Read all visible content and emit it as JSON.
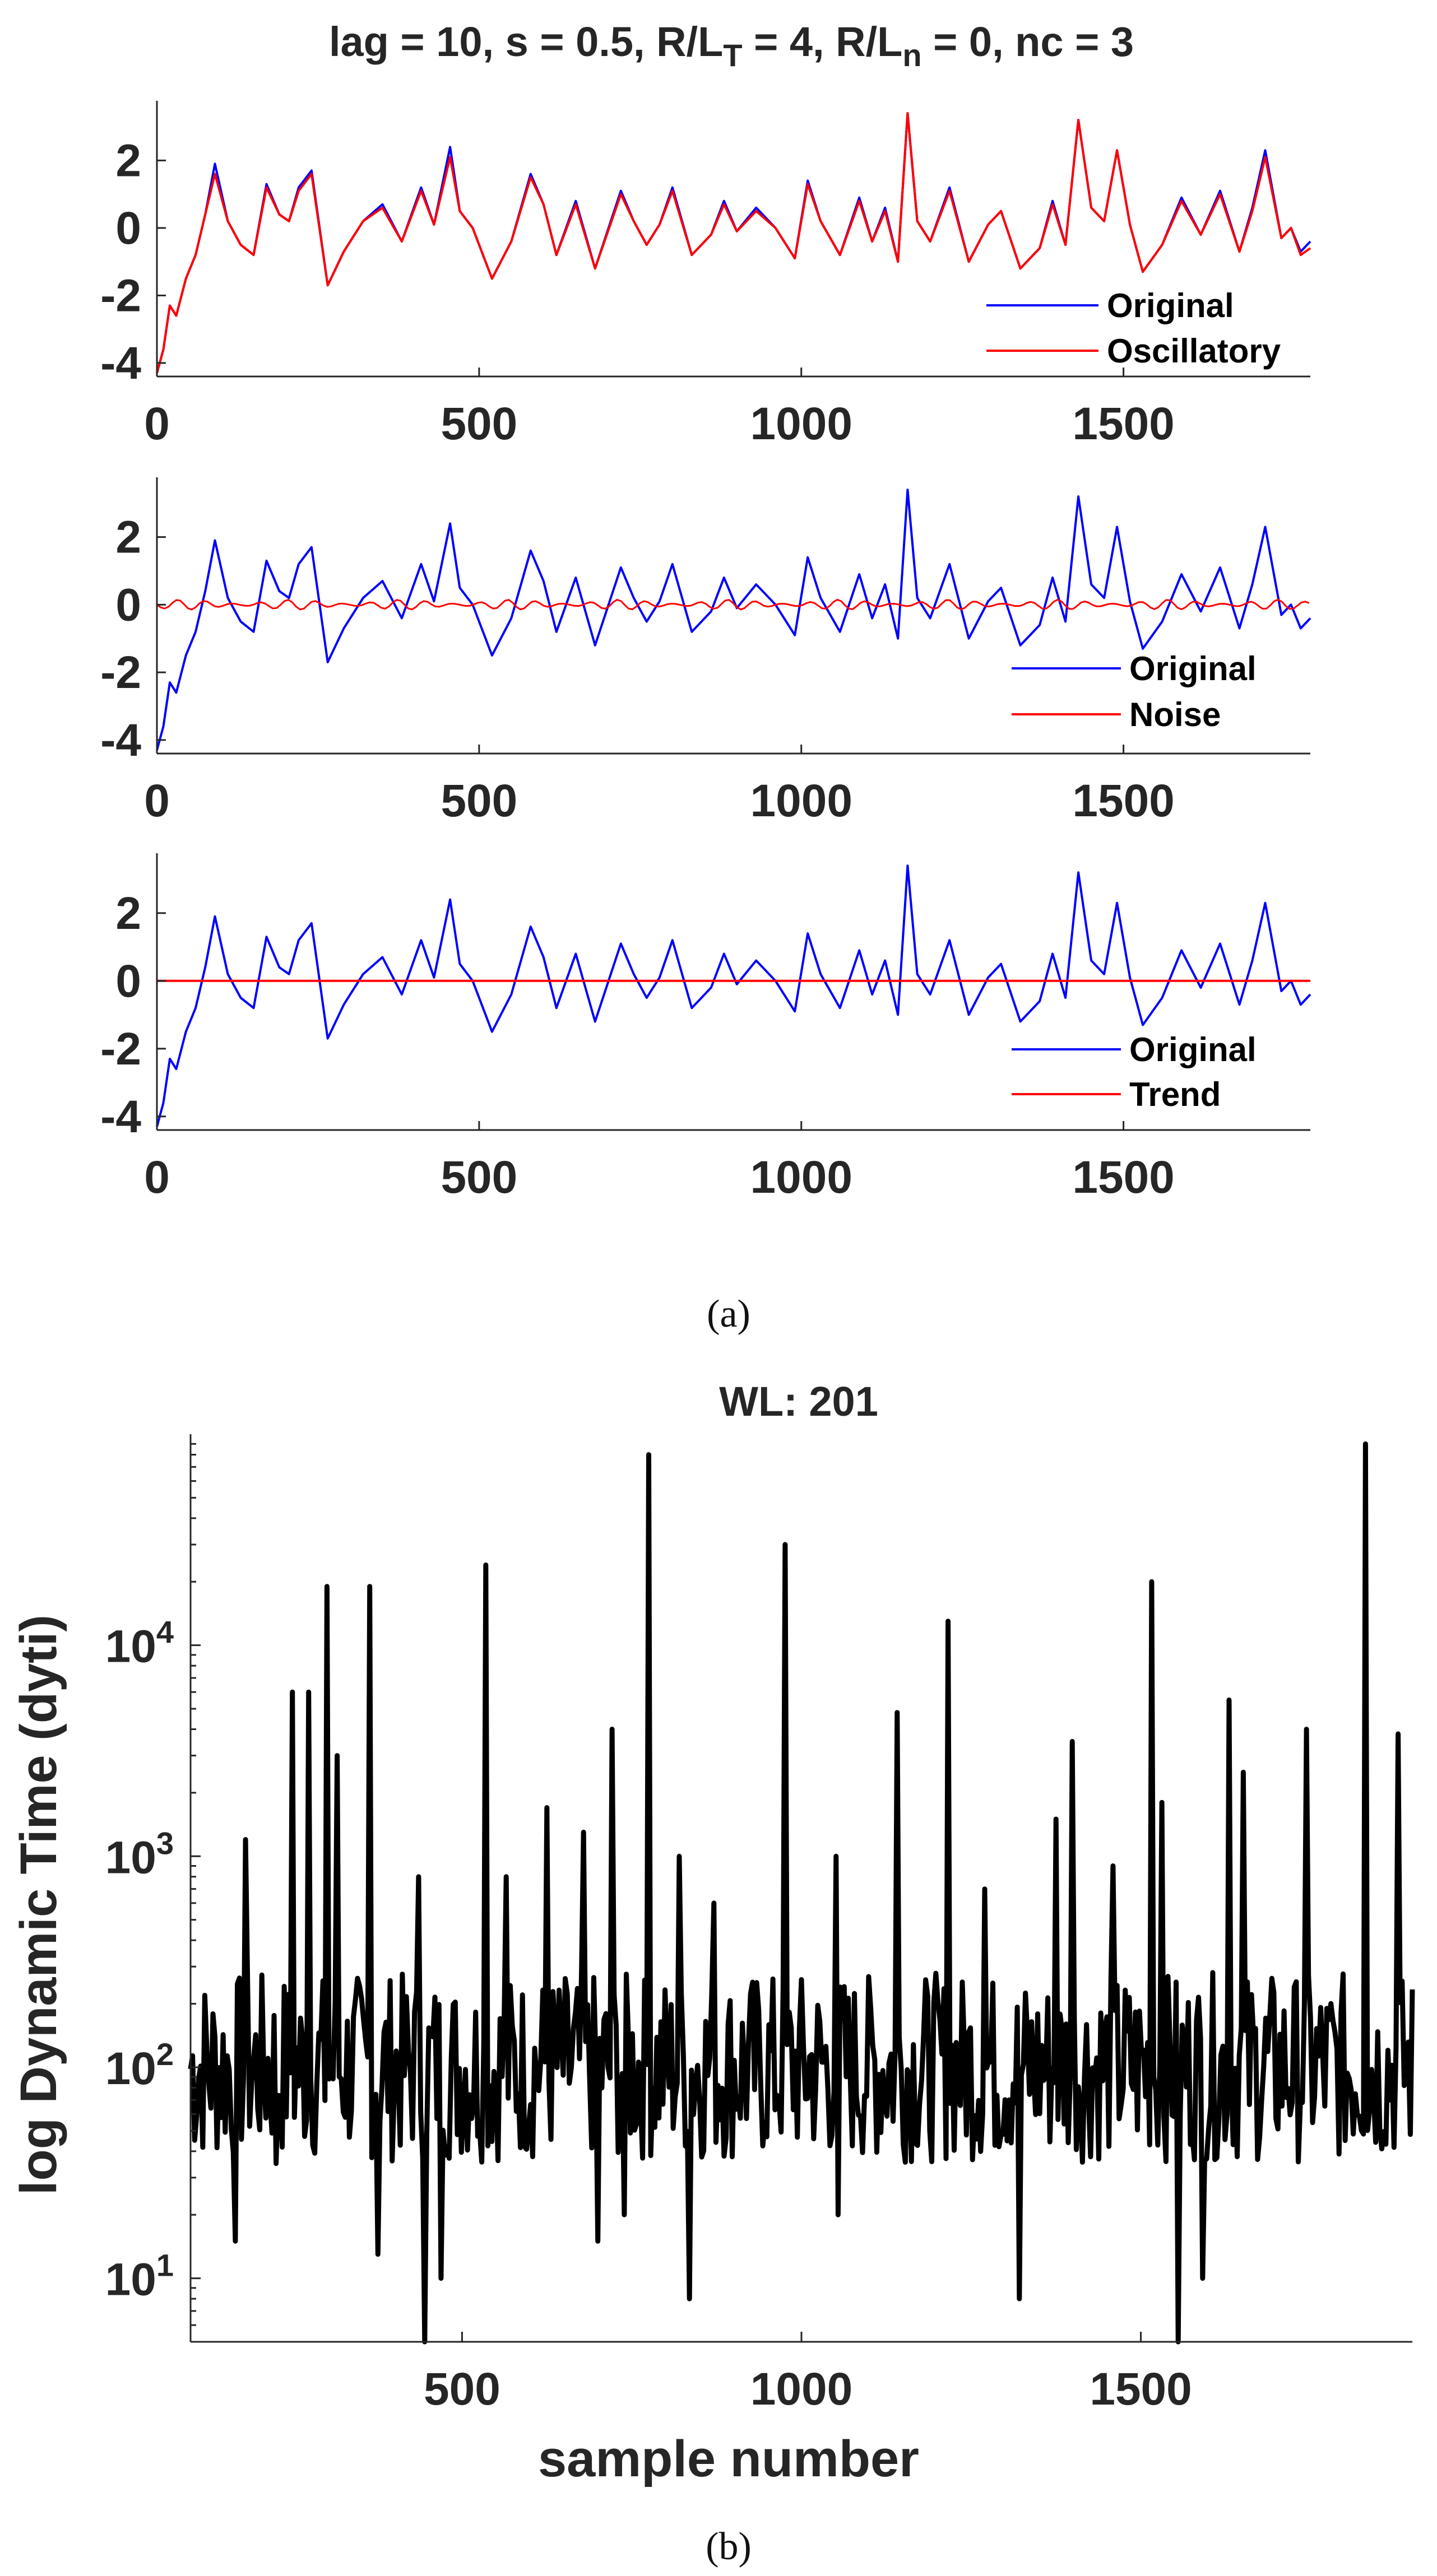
{
  "figure_title": "lag = 10, s = 0.5, R/LT = 4, R/Ln = 0, nc = 3",
  "figure_title_parts": {
    "p1": "lag = 10, s = 0.5, R/L",
    "s1": "T",
    "p2": " = 4, R/L",
    "s2": "n",
    "p3": " = 0, nc = 3"
  },
  "caption_a": "(a)",
  "caption_b": "(b)",
  "colors": {
    "original": "#0000ff",
    "component": "#ff0000",
    "dyti": "#000000",
    "axis": "#262626"
  },
  "chart_data": [
    {
      "type": "line",
      "panel": "a-top",
      "title": "",
      "xlabel": "",
      "ylabel": "",
      "xlim": [
        0,
        1790
      ],
      "ylim": [
        -4.4,
        3.6
      ],
      "xticks": [
        0,
        500,
        1000,
        1500
      ],
      "yticks": [
        2,
        0,
        -2,
        -4
      ],
      "xtick_labels": [
        "0",
        "500",
        "1000",
        "1500"
      ],
      "ytick_labels": [
        "2",
        "0",
        "-2",
        "-4"
      ],
      "legend": {
        "placement": "bottom-right",
        "entries": [
          "Original",
          "Oscillatory"
        ]
      },
      "x": [
        0,
        10,
        20,
        30,
        45,
        60,
        75,
        90,
        110,
        130,
        150,
        170,
        190,
        205,
        220,
        240,
        265,
        290,
        320,
        350,
        380,
        410,
        430,
        455,
        470,
        490,
        520,
        550,
        580,
        600,
        620,
        650,
        680,
        720,
        740,
        760,
        780,
        800,
        830,
        860,
        880,
        900,
        930,
        960,
        990,
        1010,
        1030,
        1060,
        1090,
        1110,
        1130,
        1150,
        1165,
        1180,
        1200,
        1230,
        1260,
        1290,
        1310,
        1340,
        1370,
        1390,
        1410,
        1430,
        1450,
        1470,
        1490,
        1510,
        1530,
        1560,
        1590,
        1620,
        1650,
        1680,
        1700,
        1720,
        1745,
        1760,
        1775,
        1790
      ],
      "series": [
        {
          "name": "Original",
          "values": [
            -4.3,
            -3.6,
            -2.3,
            -2.6,
            -1.5,
            -0.8,
            0.4,
            1.9,
            0.2,
            -0.5,
            -0.8,
            1.3,
            0.4,
            0.2,
            1.2,
            1.7,
            -1.7,
            -0.7,
            0.2,
            0.7,
            -0.4,
            1.2,
            0.1,
            2.4,
            0.5,
            0.0,
            -1.5,
            -0.4,
            1.6,
            0.7,
            -0.8,
            0.8,
            -1.2,
            1.1,
            0.2,
            -0.5,
            0.1,
            1.2,
            -0.8,
            -0.2,
            0.8,
            -0.1,
            0.6,
            0.0,
            -0.9,
            1.4,
            0.2,
            -0.8,
            0.9,
            -0.4,
            0.6,
            -1.0,
            3.4,
            0.2,
            -0.4,
            1.2,
            -1.0,
            0.1,
            0.5,
            -1.2,
            -0.6,
            0.8,
            -0.5,
            3.2,
            0.6,
            0.2,
            2.3,
            0.1,
            -1.3,
            -0.5,
            0.9,
            -0.2,
            1.1,
            -0.7,
            0.6,
            2.3,
            -0.3,
            0.0,
            -0.7,
            -0.4
          ]
        },
        {
          "name": "Oscillatory",
          "values": [
            -4.3,
            -3.6,
            -2.3,
            -2.6,
            -1.5,
            -0.8,
            0.4,
            1.6,
            0.2,
            -0.5,
            -0.8,
            1.2,
            0.4,
            0.2,
            1.1,
            1.6,
            -1.7,
            -0.7,
            0.2,
            0.6,
            -0.4,
            1.1,
            0.1,
            2.1,
            0.5,
            0.0,
            -1.5,
            -0.4,
            1.5,
            0.7,
            -0.8,
            0.7,
            -1.2,
            1.0,
            0.2,
            -0.5,
            0.1,
            1.1,
            -0.8,
            -0.2,
            0.7,
            -0.1,
            0.5,
            0.0,
            -0.9,
            1.3,
            0.2,
            -0.8,
            0.8,
            -0.4,
            0.5,
            -1.0,
            3.4,
            0.2,
            -0.4,
            1.1,
            -1.0,
            0.1,
            0.5,
            -1.2,
            -0.6,
            0.7,
            -0.5,
            3.2,
            0.6,
            0.2,
            2.3,
            0.1,
            -1.3,
            -0.5,
            0.8,
            -0.2,
            1.0,
            -0.7,
            0.5,
            2.1,
            -0.3,
            0.0,
            -0.8,
            -0.6
          ]
        }
      ]
    },
    {
      "type": "line",
      "panel": "a-middle",
      "title": "",
      "xlabel": "",
      "ylabel": "",
      "xlim": [
        0,
        1790
      ],
      "ylim": [
        -4.4,
        3.6
      ],
      "xticks": [
        0,
        500,
        1000,
        1500
      ],
      "yticks": [
        2,
        0,
        -2,
        -4
      ],
      "xtick_labels": [
        "0",
        "500",
        "1000",
        "1500"
      ],
      "ytick_labels": [
        "2",
        "0",
        "-2",
        "-4"
      ],
      "legend": {
        "placement": "bottom-right",
        "entries": [
          "Original",
          "Noise"
        ]
      },
      "noise_amplitude": 0.15,
      "series": [
        {
          "name": "Original",
          "ref": "a-top.Original"
        },
        {
          "name": "Noise",
          "values": "oscillating near 0 (±0.15)"
        }
      ]
    },
    {
      "type": "line",
      "panel": "a-bottom",
      "title": "",
      "xlabel": "",
      "ylabel": "",
      "xlim": [
        0,
        1790
      ],
      "ylim": [
        -4.4,
        3.6
      ],
      "xticks": [
        0,
        500,
        1000,
        1500
      ],
      "yticks": [
        2,
        0,
        -2,
        -4
      ],
      "xtick_labels": [
        "0",
        "500",
        "1000",
        "1500"
      ],
      "ytick_labels": [
        "2",
        "0",
        "-2",
        "-4"
      ],
      "legend": {
        "placement": "bottom-right",
        "entries": [
          "Original",
          "Trend"
        ]
      },
      "series": [
        {
          "name": "Original",
          "ref": "a-top.Original"
        },
        {
          "name": "Trend",
          "x": [
            0,
            1790
          ],
          "values": [
            0.0,
            0.0
          ]
        }
      ]
    },
    {
      "type": "line",
      "panel": "b",
      "title": "WL: 201",
      "xlabel": "sample number",
      "ylabel": "log Dynamic Time (dyti)",
      "yscale": "log",
      "xlim": [
        100,
        1900
      ],
      "ylim": [
        5,
        100000
      ],
      "xticks": [
        500,
        1000,
        1500
      ],
      "xtick_labels": [
        "500",
        "1000",
        "1500"
      ],
      "yticks": [
        10,
        100,
        1000,
        10000
      ],
      "ytick_labels": [
        {
          "base": "10",
          "exp": "1"
        },
        {
          "base": "10",
          "exp": "2"
        },
        {
          "base": "10",
          "exp": "3"
        },
        {
          "base": "10",
          "exp": "4"
        }
      ],
      "baseline": 100,
      "spikes": [
        {
          "x": 180,
          "y": 1200
        },
        {
          "x": 250,
          "y": 6000
        },
        {
          "x": 275,
          "y": 6000
        },
        {
          "x": 300,
          "y": 19000
        },
        {
          "x": 315,
          "y": 3000
        },
        {
          "x": 365,
          "y": 19000
        },
        {
          "x": 435,
          "y": 800
        },
        {
          "x": 535,
          "y": 24000
        },
        {
          "x": 565,
          "y": 800
        },
        {
          "x": 625,
          "y": 1700
        },
        {
          "x": 680,
          "y": 1300
        },
        {
          "x": 720,
          "y": 4000
        },
        {
          "x": 775,
          "y": 80000
        },
        {
          "x": 820,
          "y": 1000
        },
        {
          "x": 870,
          "y": 600
        },
        {
          "x": 975,
          "y": 30000
        },
        {
          "x": 1050,
          "y": 1000
        },
        {
          "x": 1140,
          "y": 4800
        },
        {
          "x": 1215,
          "y": 13000
        },
        {
          "x": 1270,
          "y": 700
        },
        {
          "x": 1375,
          "y": 1500
        },
        {
          "x": 1400,
          "y": 3500
        },
        {
          "x": 1460,
          "y": 900
        },
        {
          "x": 1515,
          "y": 20000
        },
        {
          "x": 1530,
          "y": 1800
        },
        {
          "x": 1630,
          "y": 5500
        },
        {
          "x": 1650,
          "y": 2500
        },
        {
          "x": 1745,
          "y": 4000
        },
        {
          "x": 1830,
          "y": 90000
        },
        {
          "x": 1880,
          "y": 3800
        }
      ],
      "dips": [
        {
          "x": 165,
          "y": 15
        },
        {
          "x": 225,
          "y": 35
        },
        {
          "x": 375,
          "y": 13
        },
        {
          "x": 445,
          "y": 5
        },
        {
          "x": 470,
          "y": 10
        },
        {
          "x": 700,
          "y": 15
        },
        {
          "x": 740,
          "y": 20
        },
        {
          "x": 835,
          "y": 8
        },
        {
          "x": 1055,
          "y": 20
        },
        {
          "x": 1320,
          "y": 8
        },
        {
          "x": 1555,
          "y": 5
        },
        {
          "x": 1590,
          "y": 10
        }
      ]
    }
  ]
}
